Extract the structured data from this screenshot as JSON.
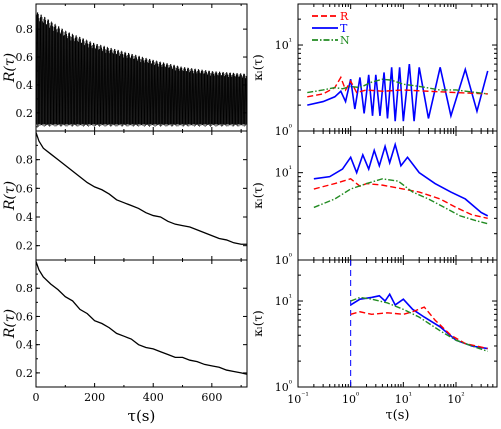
{
  "chart_data": [
    {
      "type": "line",
      "panel": "left-top",
      "ylabel": "R(τ)",
      "xlim": [
        0,
        720
      ],
      "ylim": [
        0.07,
        0.98
      ],
      "xticks": [],
      "yticks": [
        0.2,
        0.4,
        0.6,
        0.8
      ],
      "ytick_labels": [
        "0.2",
        "0.4",
        "0.6",
        "0.8"
      ],
      "series": [
        {
          "color": "#000000",
          "style": "oscillating-band",
          "upper": [
            [
              0,
              0.93
            ],
            [
              100,
              0.79
            ],
            [
              200,
              0.7
            ],
            [
              300,
              0.64
            ],
            [
              400,
              0.58
            ],
            [
              500,
              0.53
            ],
            [
              600,
              0.5
            ],
            [
              720,
              0.48
            ]
          ],
          "lower": [
            [
              0,
              0.1
            ],
            [
              100,
              0.1
            ],
            [
              200,
              0.1
            ],
            [
              300,
              0.1
            ],
            [
              400,
              0.1
            ],
            [
              500,
              0.1
            ],
            [
              600,
              0.1
            ],
            [
              720,
              0.1
            ]
          ]
        }
      ]
    },
    {
      "type": "line",
      "panel": "left-middle",
      "ylabel": "R(τ)",
      "xlim": [
        0,
        720
      ],
      "ylim": [
        0.1,
        1.0
      ],
      "xticks": [],
      "yticks": [
        0.2,
        0.4,
        0.6,
        0.8
      ],
      "ytick_labels": [
        "0.2",
        "0.4",
        "0.6",
        "0.8"
      ],
      "series": [
        {
          "color": "#000000",
          "points": [
            [
              0,
              0.99
            ],
            [
              10,
              0.93
            ],
            [
              25,
              0.88
            ],
            [
              50,
              0.84
            ],
            [
              75,
              0.8
            ],
            [
              100,
              0.76
            ],
            [
              125,
              0.72
            ],
            [
              150,
              0.68
            ],
            [
              175,
              0.64
            ],
            [
              200,
              0.61
            ],
            [
              225,
              0.59
            ],
            [
              250,
              0.56
            ],
            [
              275,
              0.52
            ],
            [
              300,
              0.5
            ],
            [
              325,
              0.48
            ],
            [
              350,
              0.46
            ],
            [
              375,
              0.43
            ],
            [
              400,
              0.41
            ],
            [
              425,
              0.4
            ],
            [
              450,
              0.37
            ],
            [
              475,
              0.35
            ],
            [
              500,
              0.34
            ],
            [
              525,
              0.33
            ],
            [
              550,
              0.31
            ],
            [
              575,
              0.29
            ],
            [
              600,
              0.27
            ],
            [
              625,
              0.25
            ],
            [
              650,
              0.24
            ],
            [
              675,
              0.22
            ],
            [
              700,
              0.21
            ],
            [
              720,
              0.21
            ]
          ]
        }
      ]
    },
    {
      "type": "line",
      "panel": "left-bottom",
      "ylabel": "R(τ)",
      "xlabel": "τ(s)",
      "xlim": [
        0,
        720
      ],
      "ylim": [
        0.1,
        1.0
      ],
      "xticks": [
        0,
        200,
        400,
        600
      ],
      "xtick_labels": [
        "0",
        "200",
        "400",
        "600"
      ],
      "yticks": [
        0.2,
        0.4,
        0.6,
        0.8
      ],
      "ytick_labels": [
        "0.2",
        "0.4",
        "0.6",
        "0.8"
      ],
      "series": [
        {
          "color": "#000000",
          "points": [
            [
              0,
              0.99
            ],
            [
              10,
              0.93
            ],
            [
              25,
              0.88
            ],
            [
              50,
              0.83
            ],
            [
              75,
              0.79
            ],
            [
              100,
              0.74
            ],
            [
              125,
              0.71
            ],
            [
              150,
              0.65
            ],
            [
              175,
              0.62
            ],
            [
              200,
              0.57
            ],
            [
              225,
              0.55
            ],
            [
              250,
              0.52
            ],
            [
              275,
              0.48
            ],
            [
              300,
              0.46
            ],
            [
              325,
              0.44
            ],
            [
              350,
              0.4
            ],
            [
              375,
              0.38
            ],
            [
              400,
              0.37
            ],
            [
              425,
              0.35
            ],
            [
              450,
              0.33
            ],
            [
              475,
              0.31
            ],
            [
              500,
              0.31
            ],
            [
              525,
              0.29
            ],
            [
              550,
              0.28
            ],
            [
              575,
              0.26
            ],
            [
              600,
              0.25
            ],
            [
              625,
              0.24
            ],
            [
              650,
              0.22
            ],
            [
              675,
              0.21
            ],
            [
              700,
              0.2
            ],
            [
              720,
              0.19
            ]
          ]
        }
      ]
    },
    {
      "type": "line",
      "panel": "right-top",
      "ylabel": "κₗ(τ)",
      "xscale": "log",
      "yscale": "log",
      "xlim": [
        0.1,
        600
      ],
      "ylim": [
        1,
        30
      ],
      "ytick_labels": [
        "10⁰",
        "10¹"
      ],
      "legend": {
        "position": "top-left",
        "entries": [
          "R",
          "T",
          "N"
        ]
      },
      "series": [
        {
          "name": "R",
          "color": "#ff0000",
          "dash": "dashed",
          "points": [
            [
              0.15,
              2.5
            ],
            [
              0.3,
              2.7
            ],
            [
              0.5,
              3.2
            ],
            [
              0.65,
              4.2
            ],
            [
              0.8,
              3.0
            ],
            [
              1.0,
              3.8
            ],
            [
              1.3,
              2.8
            ],
            [
              2.0,
              3.0
            ],
            [
              4.0,
              2.9
            ],
            [
              10,
              3.0
            ],
            [
              30,
              2.9
            ],
            [
              100,
              2.8
            ],
            [
              400,
              2.7
            ]
          ]
        },
        {
          "name": "T",
          "color": "#0000ff",
          "dash": "solid",
          "points": [
            [
              0.15,
              2.0
            ],
            [
              0.3,
              2.2
            ],
            [
              0.5,
              2.5
            ],
            [
              0.65,
              2.9
            ],
            [
              0.8,
              2.2
            ],
            [
              1.0,
              4.0
            ],
            [
              1.2,
              1.8
            ],
            [
              1.5,
              4.2
            ],
            [
              1.8,
              1.6
            ],
            [
              2.2,
              4.5
            ],
            [
              2.6,
              1.5
            ],
            [
              3.0,
              4.5
            ],
            [
              3.6,
              1.5
            ],
            [
              4.3,
              4.8
            ],
            [
              5.0,
              1.4
            ],
            [
              6.0,
              5.5
            ],
            [
              7.0,
              1.3
            ],
            [
              8.5,
              5.5
            ],
            [
              10,
              1.3
            ],
            [
              13,
              6.0
            ],
            [
              16,
              1.3
            ],
            [
              20,
              5.5
            ],
            [
              30,
              1.4
            ],
            [
              50,
              5.5
            ],
            [
              80,
              1.5
            ],
            [
              150,
              5.2
            ],
            [
              250,
              1.7
            ],
            [
              400,
              5.0
            ]
          ]
        },
        {
          "name": "N",
          "color": "#228b22",
          "dash": "dashdot",
          "points": [
            [
              0.15,
              2.8
            ],
            [
              0.3,
              3.0
            ],
            [
              0.5,
              3.2
            ],
            [
              0.7,
              3.1
            ],
            [
              1.0,
              3.3
            ],
            [
              1.5,
              3.2
            ],
            [
              2.5,
              3.7
            ],
            [
              4.0,
              4.0
            ],
            [
              6.0,
              3.9
            ],
            [
              10,
              3.5
            ],
            [
              20,
              3.3
            ],
            [
              50,
              3.0
            ],
            [
              100,
              3.0
            ],
            [
              400,
              2.7
            ]
          ]
        }
      ]
    },
    {
      "type": "line",
      "panel": "right-middle",
      "ylabel": "κₗ(τ)",
      "xscale": "log",
      "yscale": "log",
      "xlim": [
        0.1,
        600
      ],
      "ylim": [
        1,
        30
      ],
      "ytick_labels": [
        "10⁰",
        "10¹"
      ],
      "series": [
        {
          "name": "R",
          "color": "#ff0000",
          "dash": "dashed",
          "points": [
            [
              0.2,
              6.5
            ],
            [
              0.5,
              7.5
            ],
            [
              1.0,
              8.5
            ],
            [
              1.5,
              7.0
            ],
            [
              2.0,
              7.5
            ],
            [
              4.0,
              7.2
            ],
            [
              10,
              6.5
            ],
            [
              20,
              6.0
            ],
            [
              50,
              5.0
            ],
            [
              100,
              4.0
            ],
            [
              200,
              3.3
            ],
            [
              400,
              3.0
            ]
          ]
        },
        {
          "name": "T",
          "color": "#0000ff",
          "dash": "solid",
          "points": [
            [
              0.2,
              8.5
            ],
            [
              0.4,
              9.0
            ],
            [
              0.7,
              11.0
            ],
            [
              1.0,
              15.0
            ],
            [
              1.3,
              10.0
            ],
            [
              1.7,
              16.0
            ],
            [
              2.2,
              11.0
            ],
            [
              2.8,
              18.0
            ],
            [
              3.5,
              12.0
            ],
            [
              4.5,
              20.0
            ],
            [
              5.5,
              13.0
            ],
            [
              7.0,
              21.0
            ],
            [
              9.0,
              12.0
            ],
            [
              12,
              15.0
            ],
            [
              20,
              10.0
            ],
            [
              40,
              7.5
            ],
            [
              80,
              6.0
            ],
            [
              150,
              5.0
            ],
            [
              300,
              3.5
            ],
            [
              400,
              3.2
            ]
          ]
        },
        {
          "name": "N",
          "color": "#228b22",
          "dash": "dashdot",
          "points": [
            [
              0.2,
              4.0
            ],
            [
              0.5,
              5.0
            ],
            [
              1.0,
              6.5
            ],
            [
              2.0,
              7.5
            ],
            [
              4.0,
              8.5
            ],
            [
              8.0,
              8.0
            ],
            [
              15,
              6.0
            ],
            [
              30,
              5.0
            ],
            [
              60,
              4.0
            ],
            [
              120,
              3.2
            ],
            [
              250,
              2.8
            ],
            [
              400,
              2.6
            ]
          ]
        }
      ]
    },
    {
      "type": "line",
      "panel": "right-bottom",
      "ylabel": "κₗ(τ)",
      "xlabel": "τ(s)",
      "xscale": "log",
      "yscale": "log",
      "xlim": [
        0.1,
        600
      ],
      "ylim": [
        1,
        30
      ],
      "xtick_labels": [
        "10⁻¹",
        "10⁰",
        "10¹",
        "10²"
      ],
      "ytick_labels": [
        "10⁰",
        "10¹"
      ],
      "vline": {
        "x": 1.0,
        "color": "#0000ff",
        "dash": "dashed"
      },
      "series": [
        {
          "name": "R",
          "color": "#ff0000",
          "dash": "dashed",
          "points": [
            [
              1.0,
              7.0
            ],
            [
              1.5,
              7.5
            ],
            [
              2.5,
              7.0
            ],
            [
              5.0,
              7.3
            ],
            [
              10,
              7.0
            ],
            [
              15,
              7.5
            ],
            [
              25,
              8.5
            ],
            [
              40,
              6.0
            ],
            [
              80,
              4.0
            ],
            [
              150,
              3.2
            ],
            [
              400,
              2.8
            ]
          ]
        },
        {
          "name": "T",
          "color": "#0000ff",
          "dash": "solid",
          "points": [
            [
              1.0,
              9.0
            ],
            [
              1.5,
              10.5
            ],
            [
              2.5,
              11.0
            ],
            [
              3.5,
              11.5
            ],
            [
              4.5,
              10.0
            ],
            [
              5.5,
              12.0
            ],
            [
              7.0,
              9.0
            ],
            [
              10,
              10.5
            ],
            [
              15,
              8.0
            ],
            [
              25,
              6.5
            ],
            [
              50,
              5.0
            ],
            [
              100,
              3.5
            ],
            [
              200,
              3.0
            ],
            [
              400,
              2.8
            ]
          ]
        },
        {
          "name": "N",
          "color": "#228b22",
          "dash": "dashdot",
          "points": [
            [
              1.0,
              10.0
            ],
            [
              1.5,
              11.0
            ],
            [
              2.5,
              10.5
            ],
            [
              5.0,
              9.5
            ],
            [
              10,
              8.0
            ],
            [
              20,
              6.5
            ],
            [
              50,
              4.5
            ],
            [
              100,
              3.5
            ],
            [
              200,
              3.0
            ],
            [
              400,
              2.6
            ]
          ]
        }
      ]
    }
  ]
}
